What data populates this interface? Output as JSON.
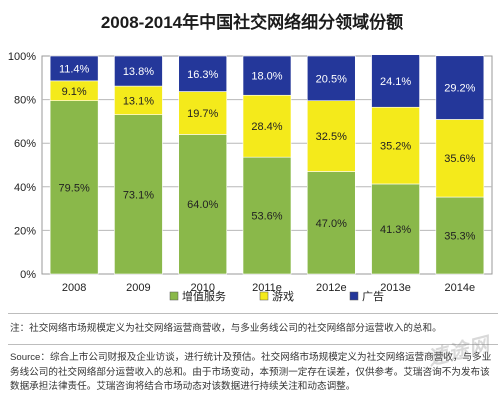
{
  "chart_data": {
    "type": "bar",
    "stacked": true,
    "title": "2008-2014年中国社交网络细分领域份额",
    "categories": [
      "2008",
      "2009",
      "2010",
      "2011e",
      "2012e",
      "2013e",
      "2014e"
    ],
    "series": [
      {
        "name": "增值服务",
        "color": "#8ab84a",
        "values": [
          79.5,
          73.1,
          64.0,
          53.6,
          47.0,
          41.3,
          35.3
        ],
        "labels": [
          "79.5%",
          "73.1%",
          "64.0%",
          "53.6%",
          "47.0%",
          "41.3%",
          "35.3%"
        ]
      },
      {
        "name": "游戏",
        "color": "#f4ea1b",
        "values": [
          9.1,
          13.1,
          19.7,
          28.4,
          32.5,
          35.2,
          35.6
        ],
        "labels": [
          "9.1%",
          "13.1%",
          "19.7%",
          "28.4%",
          "32.5%",
          "35.2%",
          "35.6%"
        ]
      },
      {
        "name": "广告",
        "color": "#24379a",
        "values": [
          11.4,
          13.8,
          16.3,
          18.0,
          20.5,
          24.1,
          29.2
        ],
        "labels": [
          "11.4%",
          "13.8%",
          "16.3%",
          "18.0%",
          "20.5%",
          "24.1%",
          "29.2%"
        ]
      }
    ],
    "yticks": [
      "0%",
      "20%",
      "40%",
      "60%",
      "80%",
      "100%"
    ],
    "ylim": [
      0,
      100
    ],
    "grid": true,
    "legend_position": "bottom"
  },
  "notes": {
    "note": "注：社交网络市场规模定义为社交网络运营商营收，与多业务线公司的社交网络部分运营收入的总和。",
    "source": "Source：综合上市公司财报及企业访谈，进行统计及预估。社交网络市场规模定义为社交网络运营商营收，与多业务线公司的社交网络部分运营收入的总和。由于市场变动，本预测一定存在误差，仅供参考。艾瑞咨询不为发布该数据承担法律责任。艾瑞咨询将结合市场动态对该数据进行持续关注和动态调整。"
  },
  "watermark": "速途网"
}
